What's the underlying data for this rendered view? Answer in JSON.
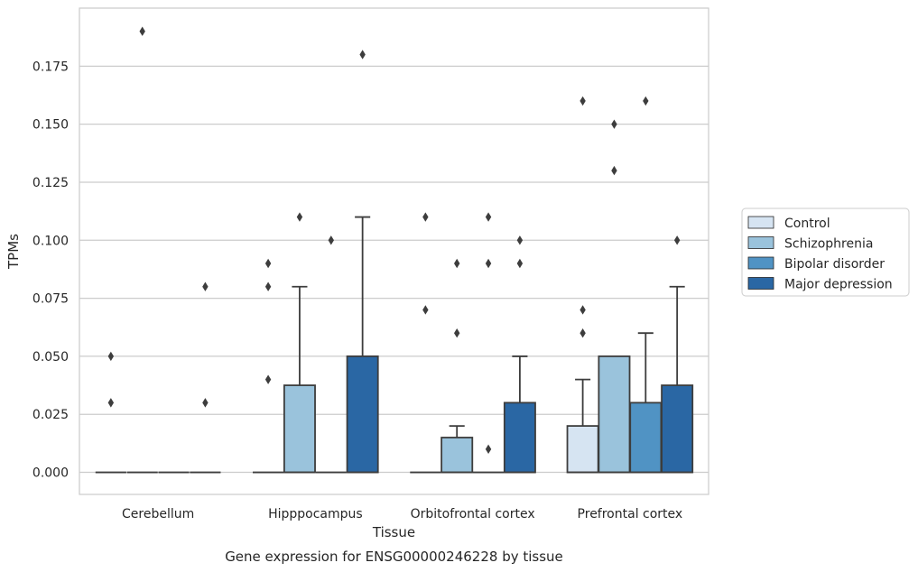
{
  "chart_data": {
    "type": "box",
    "xlabel": "Tissue",
    "ylabel": "TPMs",
    "caption": "Gene expression for ENSG00000246228 by tissue",
    "ylim": [
      -0.0095,
      0.2
    ],
    "yticks": [
      "0.000",
      "0.025",
      "0.050",
      "0.075",
      "0.100",
      "0.125",
      "0.150",
      "0.175"
    ],
    "categories": [
      "Cerebellum",
      "Hipppocampus",
      "Orbitofrontal cortex",
      "Prefrontal cortex"
    ],
    "grid": "horizontal",
    "legend_position": "right",
    "series": [
      {
        "name": "Control",
        "color": "#d6e4f2",
        "boxes": [
          {
            "q1": 0,
            "q3": 0,
            "median": 0,
            "whisker_low": 0,
            "whisker_high": 0,
            "outliers": [
              0.05,
              0.03
            ]
          },
          {
            "q1": 0,
            "q3": 0,
            "median": 0,
            "whisker_low": 0,
            "whisker_high": 0,
            "outliers": [
              0.09,
              0.08,
              0.04
            ]
          },
          {
            "q1": 0,
            "q3": 0,
            "median": 0,
            "whisker_low": 0,
            "whisker_high": 0,
            "outliers": [
              0.11,
              0.07
            ]
          },
          {
            "q1": 0,
            "q3": 0.02,
            "median": 0,
            "whisker_low": 0,
            "whisker_high": 0.04,
            "outliers": [
              0.16,
              0.07,
              0.06
            ]
          }
        ]
      },
      {
        "name": "Schizophrenia",
        "color": "#9ac3dc",
        "boxes": [
          {
            "q1": 0,
            "q3": 0,
            "median": 0,
            "whisker_low": 0,
            "whisker_high": 0,
            "outliers": [
              0.19
            ]
          },
          {
            "q1": 0,
            "q3": 0.0375,
            "median": 0,
            "whisker_low": 0,
            "whisker_high": 0.08,
            "outliers": [
              0.11
            ]
          },
          {
            "q1": 0,
            "q3": 0.015,
            "median": 0,
            "whisker_low": 0,
            "whisker_high": 0.02,
            "outliers": [
              0.09,
              0.06
            ]
          },
          {
            "q1": 0,
            "q3": 0.05,
            "median": 0,
            "whisker_low": 0,
            "whisker_high": 0.05,
            "outliers": [
              0.15,
              0.13
            ]
          }
        ]
      },
      {
        "name": "Bipolar disorder",
        "color": "#5093c4",
        "boxes": [
          {
            "q1": 0,
            "q3": 0,
            "median": 0,
            "whisker_low": 0,
            "whisker_high": 0,
            "outliers": []
          },
          {
            "q1": 0,
            "q3": 0,
            "median": 0,
            "whisker_low": 0,
            "whisker_high": 0,
            "outliers": [
              0.1
            ]
          },
          {
            "q1": 0,
            "q3": 0,
            "median": 0,
            "whisker_low": 0,
            "whisker_high": 0,
            "outliers": [
              0.11,
              0.09,
              0.01
            ]
          },
          {
            "q1": 0,
            "q3": 0.03,
            "median": 0,
            "whisker_low": 0,
            "whisker_high": 0.06,
            "outliers": [
              0.16
            ]
          }
        ]
      },
      {
        "name": "Major depression",
        "color": "#2a67a4",
        "boxes": [
          {
            "q1": 0,
            "q3": 0,
            "median": 0,
            "whisker_low": 0,
            "whisker_high": 0,
            "outliers": [
              0.08,
              0.03
            ]
          },
          {
            "q1": 0,
            "q3": 0.05,
            "median": 0,
            "whisker_low": 0,
            "whisker_high": 0.11,
            "outliers": [
              0.18
            ]
          },
          {
            "q1": 0,
            "q3": 0.03,
            "median": 0,
            "whisker_low": 0,
            "whisker_high": 0.05,
            "outliers": [
              0.1,
              0.09
            ]
          },
          {
            "q1": 0,
            "q3": 0.0375,
            "median": 0,
            "whisker_low": 0,
            "whisker_high": 0.08,
            "outliers": [
              0.1
            ]
          }
        ]
      }
    ]
  }
}
